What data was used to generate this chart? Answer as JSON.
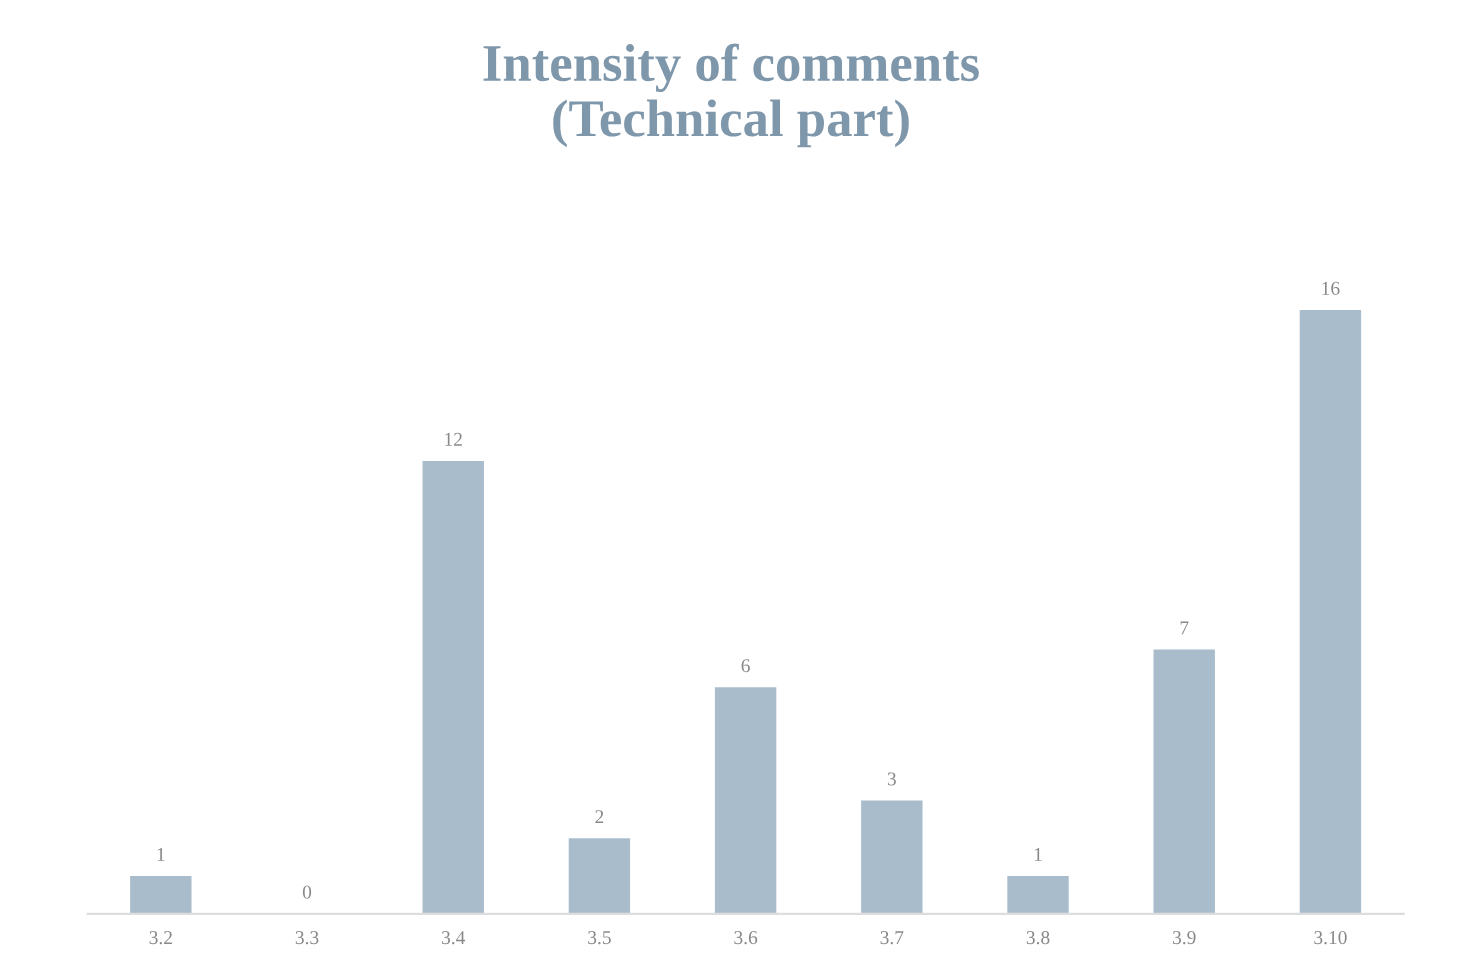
{
  "chart_data": {
    "type": "bar",
    "title": "Intensity of comments\n(Technical part)",
    "categories": [
      "3.2",
      "3.3",
      "3.4",
      "3.5",
      "3.6",
      "3.7",
      "3.8",
      "3.9",
      "3.10"
    ],
    "values": [
      1,
      0,
      12,
      2,
      6,
      3,
      1,
      7,
      16
    ],
    "color": "#a9bccc",
    "data_labels": true,
    "tick_labels": "x",
    "grid": false,
    "legend": false
  }
}
